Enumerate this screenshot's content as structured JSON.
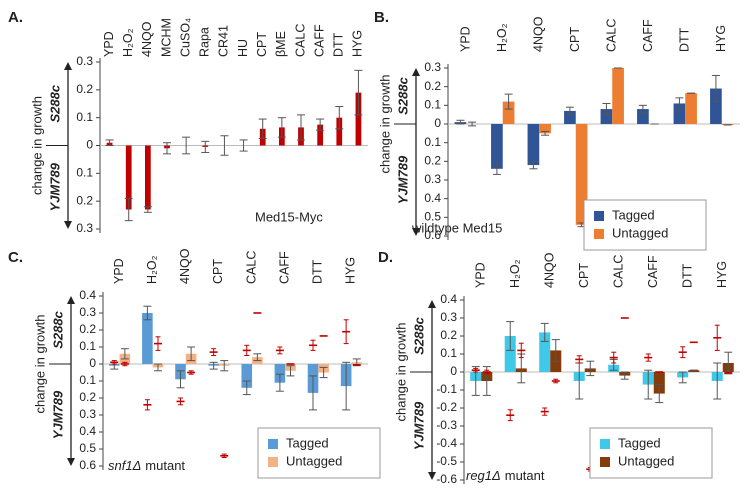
{
  "chart_data": [
    {
      "type": "bar",
      "panel": "A.",
      "ylabel": "change in growth",
      "y_top_label": "S288c",
      "y_bottom_label": "YJM789",
      "annotation": "Med15-Myc",
      "categories": [
        "YPD",
        "H₂O₂",
        "4NQO",
        "MCHM",
        "CuSO₄",
        "Rapa",
        "CR41",
        "HU",
        "CPT",
        "βME",
        "CALC",
        "CAFF",
        "DTT",
        "HYG"
      ],
      "series": [
        {
          "color": "#c00000",
          "values": [
            0.01,
            -0.23,
            -0.23,
            -0.01,
            0.0,
            -0.005,
            0.0,
            0.0,
            0.06,
            0.065,
            0.065,
            0.075,
            0.1,
            0.19
          ],
          "errors": [
            0.01,
            0.04,
            0.01,
            0.02,
            0.03,
            0.02,
            0.035,
            0.02,
            0.035,
            0.035,
            0.045,
            0.02,
            0.04,
            0.08
          ]
        }
      ],
      "ylim": [
        -0.3,
        0.3
      ],
      "yticks": [
        {
          "value": -0.3,
          "label": "0.3"
        },
        {
          "value": -0.2,
          "label": "0.2"
        },
        {
          "value": -0.1,
          "label": "0.1"
        },
        0,
        0.1,
        0.2,
        0.3
      ]
    },
    {
      "type": "bar",
      "panel": "B.",
      "ylabel": "change in growth",
      "y_top_label": "S288c",
      "y_bottom_label": "YJM789",
      "annotation": "wildtype Med15",
      "legend": "lower right",
      "categories": [
        "YPD",
        "H₂O₂",
        "4NQO",
        "CPT",
        "CALC",
        "CAFF",
        "DTT",
        "HYG"
      ],
      "series": [
        {
          "name": "Tagged",
          "color": "#2f5597",
          "values": [
            0.01,
            -0.24,
            -0.22,
            0.07,
            0.08,
            0.08,
            0.11,
            0.19
          ],
          "errors": [
            0.01,
            0.03,
            0.02,
            0.02,
            0.03,
            0.02,
            0.03,
            0.07
          ]
        },
        {
          "name": "Untagged",
          "color": "#ed7d31",
          "values": [
            0.0,
            0.12,
            -0.05,
            -0.54,
            0.3,
            0.0,
            0.165,
            -0.005
          ],
          "errors": [
            0.01,
            0.04,
            0.01,
            0.01,
            0,
            0,
            0,
            0
          ]
        }
      ],
      "ylim": [
        -0.6,
        0.3
      ],
      "yticks": [
        {
          "value": -0.6,
          "label": "0.6"
        },
        {
          "value": -0.5,
          "label": "0.5"
        },
        {
          "value": -0.4,
          "label": "0.4"
        },
        {
          "value": -0.3,
          "label": "0.3"
        },
        {
          "value": -0.2,
          "label": "0.2"
        },
        {
          "value": -0.1,
          "label": "0.1"
        },
        0,
        0.1,
        0.2,
        0.3
      ]
    },
    {
      "type": "bar",
      "panel": "C.",
      "ylabel": "change in growth",
      "y_top_label": "S288c",
      "y_bottom_label": "YJM789",
      "annotation": [
        "snf1Δ",
        "mutant"
      ],
      "legend": "lower right",
      "categories": [
        "YPD",
        "H₂O₂",
        "4NQO",
        "CPT",
        "CALC",
        "CAFF",
        "DTT",
        "HYG"
      ],
      "series": [
        {
          "name": "Tagged",
          "color": "#5b9bd5",
          "values": [
            -0.01,
            0.3,
            -0.09,
            -0.01,
            -0.14,
            -0.11,
            -0.17,
            -0.13
          ],
          "errors": [
            0.02,
            0.04,
            0.05,
            0.02,
            0.04,
            0.05,
            0.1,
            0.14
          ]
        },
        {
          "name": "Untagged",
          "color": "#f4b183",
          "values": [
            0.06,
            -0.02,
            0.06,
            -0.01,
            0.04,
            -0.04,
            -0.05,
            0.01
          ],
          "errors": [
            0.03,
            0.02,
            0.04,
            0.03,
            0.02,
            0.03,
            0.03,
            0.02
          ]
        },
        {
          "style": "marker",
          "color": "#c00000",
          "values": [
            0.01,
            -0.24,
            -0.22,
            0.07,
            0.08,
            0.08,
            0.11,
            0.19
          ],
          "errors": [
            0.01,
            0.03,
            0.02,
            0.02,
            0.03,
            0.02,
            0.03,
            0.07
          ]
        },
        {
          "style": "marker",
          "color": "#c00000",
          "values": [
            0.0,
            0.12,
            -0.05,
            -0.54,
            0.3,
            0.0,
            0.165,
            -0.005
          ],
          "errors": [
            0.01,
            0.04,
            0.01,
            0.01,
            0,
            0,
            0,
            0
          ]
        }
      ],
      "ylim": [
        -0.6,
        0.4
      ],
      "yticks": [
        {
          "value": -0.6,
          "label": "0.6"
        },
        {
          "value": -0.5,
          "label": "0.5"
        },
        {
          "value": -0.4,
          "label": "0.4"
        },
        {
          "value": -0.3,
          "label": "0.3"
        },
        {
          "value": -0.2,
          "label": "0.2"
        },
        {
          "value": -0.1,
          "label": "0.1"
        },
        0,
        0.1,
        0.2,
        0.3,
        0.4
      ]
    },
    {
      "type": "bar",
      "panel": "D.",
      "ylabel": "change in growth",
      "y_top_label": "S288c",
      "y_bottom_label": "YJM789",
      "annotation": [
        "reg1Δ",
        "mutant"
      ],
      "legend": "lower right",
      "categories": [
        "YPD",
        "H₂O₂",
        "4NQO",
        "CPT",
        "CALC",
        "CAFF",
        "DTT",
        "HYG"
      ],
      "series": [
        {
          "name": "Tagged",
          "color": "#3fc8e8",
          "values": [
            -0.05,
            0.2,
            0.22,
            -0.05,
            0.04,
            -0.07,
            -0.03,
            -0.05
          ],
          "errors": [
            0.08,
            0.08,
            0.05,
            0.1,
            0.03,
            0.08,
            0.03,
            0.1
          ]
        },
        {
          "name": "Untagged",
          "color": "#843c0c",
          "values": [
            -0.05,
            0.02,
            0.12,
            0.02,
            -0.02,
            -0.12,
            0.01,
            0.05
          ],
          "errors": [
            0.08,
            0.08,
            0.06,
            0.04,
            0.02,
            0.05,
            0,
            0.06
          ]
        },
        {
          "style": "marker",
          "color": "#c00000",
          "values": [
            0.01,
            -0.24,
            -0.22,
            0.07,
            0.08,
            0.08,
            0.11,
            0.19
          ],
          "errors": [
            0.01,
            0.03,
            0.02,
            0.02,
            0.03,
            0.02,
            0.03,
            0.07
          ]
        },
        {
          "style": "marker",
          "color": "#c00000",
          "values": [
            0.0,
            0.12,
            -0.05,
            -0.54,
            0.3,
            0.0,
            0.165,
            -0.005
          ],
          "errors": [
            0.01,
            0.04,
            0.01,
            0.01,
            0,
            0,
            0,
            0
          ]
        }
      ],
      "ylim": [
        -0.6,
        0.4
      ],
      "yticks": [
        -0.6,
        -0.5,
        -0.4,
        -0.3,
        -0.2,
        -0.1,
        0,
        0.1,
        0.2,
        0.3,
        0.4
      ]
    }
  ]
}
